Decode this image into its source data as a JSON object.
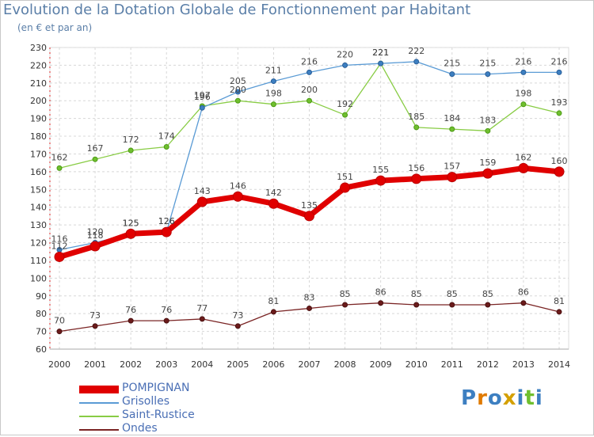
{
  "title": "Evolution de la Dotation Globale de Fonctionnement par Habitant",
  "subtitle": "(en € et par an)",
  "logo_text": "Proxiti",
  "chart_data": {
    "type": "line",
    "title": "Evolution de la Dotation Globale de Fonctionnement par Habitant",
    "subtitle": "(en € et par an)",
    "x": [
      "2000",
      "2001",
      "2002",
      "2003",
      "2004",
      "2005",
      "2006",
      "2007",
      "2008",
      "2009",
      "2010",
      "2011",
      "2012",
      "2013",
      "2014"
    ],
    "ylim": [
      60,
      230
    ],
    "yticks": [
      60,
      70,
      80,
      90,
      100,
      110,
      120,
      130,
      140,
      150,
      160,
      170,
      180,
      190,
      200,
      210,
      220,
      230
    ],
    "grid": true,
    "legend_position": "bottom-left",
    "series": [
      {
        "name": "POMPIGNAN",
        "color": "#e00000",
        "values": [
          112,
          118,
          125,
          126,
          143,
          146,
          142,
          135,
          151,
          155,
          156,
          157,
          159,
          162,
          160
        ]
      },
      {
        "name": "Grisolles",
        "color": "#5a9bd5",
        "values": [
          116,
          120,
          125,
          126,
          196,
          205,
          211,
          216,
          220,
          221,
          222,
          215,
          215,
          216,
          216
        ]
      },
      {
        "name": "Saint-Rustice",
        "color": "#88cc44",
        "values": [
          162,
          167,
          172,
          174,
          197,
          200,
          198,
          200,
          192,
          221,
          185,
          184,
          183,
          198,
          193
        ]
      },
      {
        "name": "Ondes",
        "color": "#7a2424",
        "values": [
          70,
          73,
          76,
          76,
          77,
          73,
          81,
          83,
          85,
          86,
          85,
          85,
          85,
          86,
          81
        ]
      }
    ]
  }
}
